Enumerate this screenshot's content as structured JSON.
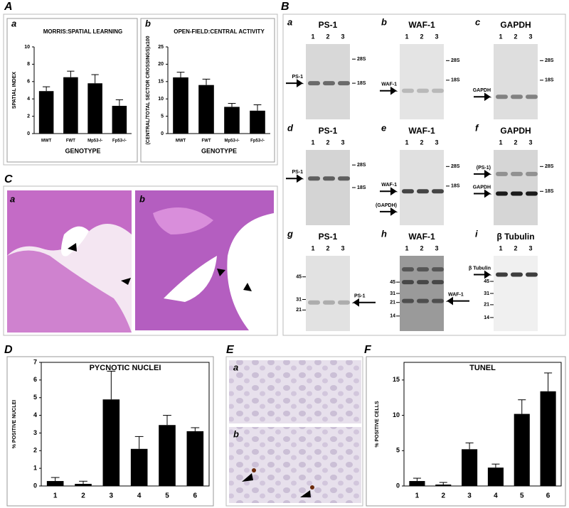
{
  "panels": [
    "A",
    "B",
    "C",
    "D",
    "E",
    "F"
  ],
  "chart_data": [
    {
      "type": "bar",
      "panel": "a",
      "title": "MORRIS:SPATIAL LEARNING",
      "y_label": "SPATIAL INDEX",
      "x_label": "GENOTYPE",
      "categories": [
        "MWT",
        "FWT",
        "Mp53-/-",
        "Fp53-/-"
      ],
      "values": [
        4.9,
        6.5,
        5.8,
        3.2
      ],
      "errors": [
        0.5,
        0.7,
        1.0,
        0.7
      ],
      "color": "#000000",
      "ylim": [
        0,
        10
      ],
      "yticks": [
        0,
        2,
        4,
        6,
        8,
        10
      ]
    },
    {
      "type": "bar",
      "panel": "b",
      "title": "OPEN-FIELD:CENTRAL ACTIVITY",
      "y_label": "(CENTRAL/TOTAL SECTOR CROSSINGS)x100",
      "x_label": "GENOTYPE",
      "categories": [
        "MWT",
        "FWT",
        "Mp53-/-",
        "Fp53-/-"
      ],
      "values": [
        16.2,
        14.0,
        7.7,
        6.6
      ],
      "errors": [
        1.5,
        1.7,
        1.0,
        1.7
      ],
      "color": "#000000",
      "ylim": [
        0,
        25
      ],
      "yticks": [
        0,
        5,
        10,
        15,
        20,
        25
      ]
    },
    {
      "type": "bar",
      "title": "PYCNOTIC NUCLEI",
      "y_label": "% POSITIVE NUCLEI",
      "categories": [
        "1",
        "2",
        "3",
        "4",
        "5",
        "6"
      ],
      "values": [
        0.28,
        0.12,
        4.9,
        2.1,
        3.45,
        3.1
      ],
      "errors": [
        0.2,
        0.15,
        1.6,
        0.7,
        0.55,
        0.2
      ],
      "color": "#000000",
      "ylim": [
        0,
        7
      ],
      "yticks": [
        0,
        1,
        2,
        3,
        4,
        5,
        6,
        7
      ]
    },
    {
      "type": "bar",
      "title": "TUNEL",
      "y_label": "% POSITIVE CELLS",
      "categories": [
        "1",
        "2",
        "3",
        "4",
        "5",
        "6"
      ],
      "values": [
        0.7,
        0.2,
        5.2,
        2.6,
        10.2,
        13.4
      ],
      "errors": [
        0.4,
        0.3,
        0.9,
        0.5,
        2.0,
        2.6
      ],
      "color": "#000000",
      "ylim": [
        0,
        17.5
      ],
      "yticks": [
        0,
        5,
        10,
        15
      ]
    }
  ],
  "blots": [
    {
      "letter": "a",
      "title": "PS-1",
      "lanes": [
        "1",
        "2",
        "3"
      ],
      "left": [
        "PS-1"
      ],
      "right": [
        "28S",
        "18S"
      ]
    },
    {
      "letter": "b",
      "title": "WAF-1",
      "lanes": [
        "1",
        "2",
        "3"
      ],
      "left": [
        "WAF-1"
      ],
      "right": [
        "28S",
        "18S"
      ]
    },
    {
      "letter": "c",
      "title": "GAPDH",
      "lanes": [
        "1",
        "2",
        "3"
      ],
      "left": [
        "GAPDH"
      ],
      "right": [
        "28S",
        "18S"
      ]
    },
    {
      "letter": "d",
      "title": "PS-1",
      "lanes": [
        "1",
        "2",
        "3"
      ],
      "left": [
        "PS-1"
      ],
      "right": [
        "28S",
        "18S"
      ]
    },
    {
      "letter": "e",
      "title": "WAF-1",
      "lanes": [
        "1",
        "2",
        "3"
      ],
      "left": [
        "WAF-1",
        "(GAPDH)"
      ],
      "right": [
        "28S",
        "18S"
      ]
    },
    {
      "letter": "f",
      "title": "GAPDH",
      "lanes": [
        "1",
        "2",
        "3"
      ],
      "left": [
        "(PS-1)",
        "GAPDH"
      ],
      "right": [
        "28S",
        "18S"
      ]
    },
    {
      "letter": "g",
      "title": "PS-1",
      "lanes": [
        "1",
        "2",
        "3"
      ],
      "left": [
        "45",
        "31",
        "21"
      ],
      "right": [
        "PS-1"
      ]
    },
    {
      "letter": "h",
      "title": "WAF-1",
      "lanes": [
        "1",
        "2",
        "3"
      ],
      "left": [
        "45",
        "31",
        "21",
        "14"
      ],
      "right": [
        "WAF-1"
      ]
    },
    {
      "letter": "i",
      "title": "β Tubulin",
      "lanes": [
        "1",
        "2",
        "3"
      ],
      "left": [
        "β Tubulin",
        "45",
        "31",
        "21",
        "14"
      ],
      "right": []
    }
  ],
  "histology": [
    {
      "letter": "a"
    },
    {
      "letter": "b"
    }
  ],
  "staining": [
    {
      "letter": "a"
    },
    {
      "letter": "b"
    }
  ]
}
